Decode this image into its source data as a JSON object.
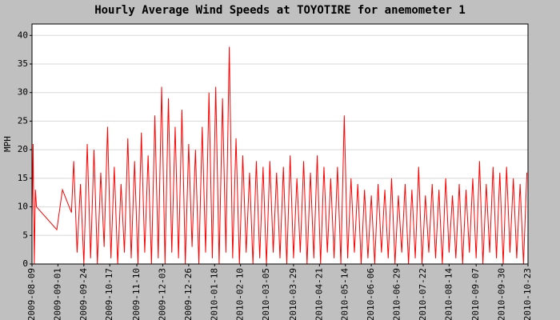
{
  "chart_data": {
    "type": "line",
    "title": "Hourly Average Wind Speeds at TOYOTIRE for anemometer 1",
    "y_label": "MPH",
    "color": "#ff0000",
    "grid": true,
    "ylim": [
      0,
      42
    ],
    "yticks": [
      0,
      5,
      10,
      15,
      20,
      25,
      30,
      35,
      40
    ],
    "xlim": [
      "2009-08-09",
      "2010-10-23"
    ],
    "xticks": [
      "2009-08-09",
      "2009-09-01",
      "2009-09-24",
      "2009-10-17",
      "2009-11-10",
      "2009-12-03",
      "2009-12-26",
      "2010-01-18",
      "2010-02-10",
      "2010-03-05",
      "2010-03-29",
      "2010-04-21",
      "2010-05-14",
      "2010-06-06",
      "2010-06-29",
      "2010-07-22",
      "2010-08-14",
      "2010-09-07",
      "2010-09-30",
      "2010-10-23"
    ],
    "x": [
      "2009-08-09",
      "2009-08-10",
      "2009-08-11",
      "2009-08-12",
      "2009-08-13",
      "2009-08-31",
      "2009-09-05",
      "2009-09-13",
      "2009-09-15",
      "2009-09-18",
      "2009-09-21",
      "2009-09-24",
      "2009-09-27",
      "2009-09-30",
      "2009-10-03",
      "2009-10-06",
      "2009-10-09",
      "2009-10-12",
      "2009-10-15",
      "2009-10-18",
      "2009-10-21",
      "2009-10-24",
      "2009-10-27",
      "2009-10-30",
      "2009-11-02",
      "2009-11-05",
      "2009-11-08",
      "2009-11-11",
      "2009-11-14",
      "2009-11-17",
      "2009-11-20",
      "2009-11-23",
      "2009-11-26",
      "2009-11-29",
      "2009-12-02",
      "2009-12-05",
      "2009-12-08",
      "2009-12-11",
      "2009-12-14",
      "2009-12-17",
      "2009-12-20",
      "2009-12-23",
      "2009-12-26",
      "2009-12-29",
      "2010-01-01",
      "2010-01-04",
      "2010-01-07",
      "2010-01-10",
      "2010-01-13",
      "2010-01-16",
      "2010-01-19",
      "2010-01-22",
      "2010-01-25",
      "2010-01-28",
      "2010-01-31",
      "2010-02-03",
      "2010-02-06",
      "2010-02-09",
      "2010-02-12",
      "2010-02-15",
      "2010-02-18",
      "2010-02-21",
      "2010-02-24",
      "2010-02-27",
      "2010-03-02",
      "2010-03-05",
      "2010-03-08",
      "2010-03-11",
      "2010-03-14",
      "2010-03-17",
      "2010-03-20",
      "2010-03-23",
      "2010-03-26",
      "2010-03-29",
      "2010-04-01",
      "2010-04-04",
      "2010-04-07",
      "2010-04-10",
      "2010-04-13",
      "2010-04-16",
      "2010-04-19",
      "2010-04-22",
      "2010-04-25",
      "2010-04-28",
      "2010-05-01",
      "2010-05-04",
      "2010-05-07",
      "2010-05-10",
      "2010-05-13",
      "2010-05-16",
      "2010-05-19",
      "2010-05-22",
      "2010-05-25",
      "2010-05-28",
      "2010-05-31",
      "2010-06-03",
      "2010-06-06",
      "2010-06-09",
      "2010-06-12",
      "2010-06-15",
      "2010-06-18",
      "2010-06-21",
      "2010-06-24",
      "2010-06-27",
      "2010-06-30",
      "2010-07-03",
      "2010-07-06",
      "2010-07-09",
      "2010-07-12",
      "2010-07-15",
      "2010-07-18",
      "2010-07-21",
      "2010-07-24",
      "2010-07-27",
      "2010-07-30",
      "2010-08-02",
      "2010-08-05",
      "2010-08-08",
      "2010-08-11",
      "2010-08-14",
      "2010-08-17",
      "2010-08-20",
      "2010-08-23",
      "2010-08-26",
      "2010-08-29",
      "2010-09-01",
      "2010-09-04",
      "2010-09-07",
      "2010-09-10",
      "2010-09-13",
      "2010-09-16",
      "2010-09-19",
      "2010-09-22",
      "2010-09-25",
      "2010-09-28",
      "2010-10-01",
      "2010-10-04",
      "2010-10-07",
      "2010-10-10",
      "2010-10-13",
      "2010-10-16",
      "2010-10-19",
      "2010-10-22"
    ],
    "values": [
      8,
      21,
      0,
      13,
      10,
      6,
      13,
      9,
      18,
      2,
      14,
      0,
      21,
      1,
      20,
      0,
      16,
      3,
      24,
      1,
      17,
      0,
      14,
      2,
      22,
      1,
      18,
      0,
      23,
      2,
      19,
      0,
      26,
      1,
      31,
      0,
      29,
      2,
      24,
      1,
      27,
      0,
      21,
      3,
      20,
      0,
      24,
      2,
      30,
      1,
      31,
      0,
      29,
      2,
      38,
      1,
      22,
      0,
      19,
      2,
      16,
      0,
      18,
      1,
      17,
      0,
      18,
      2,
      16,
      1,
      17,
      0,
      19,
      1,
      15,
      2,
      18,
      0,
      16,
      1,
      19,
      0,
      17,
      2,
      15,
      1,
      17,
      0,
      26,
      1,
      15,
      2,
      14,
      0,
      13,
      1,
      12,
      0,
      14,
      2,
      13,
      1,
      15,
      0,
      12,
      2,
      14,
      0,
      13,
      1,
      17,
      0,
      12,
      2,
      14,
      1,
      13,
      0,
      15,
      2,
      12,
      1,
      14,
      0,
      13,
      2,
      15,
      1,
      18,
      0,
      14,
      2,
      17,
      1,
      16,
      0,
      17,
      2,
      15,
      1,
      14,
      0,
      16
    ]
  }
}
